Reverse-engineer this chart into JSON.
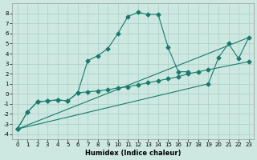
{
  "background_color": "#cce8e0",
  "grid_color": "#aacfc8",
  "line_color": "#1a7a6e",
  "xlim": [
    -0.5,
    23.5
  ],
  "ylim": [
    -4.5,
    9.0
  ],
  "xlabel": "Humidex (Indice chaleur)",
  "xticks": [
    0,
    1,
    2,
    3,
    4,
    5,
    6,
    7,
    8,
    9,
    10,
    11,
    12,
    13,
    14,
    15,
    16,
    17,
    18,
    19,
    20,
    21,
    22,
    23
  ],
  "yticks": [
    -4,
    -3,
    -2,
    -1,
    0,
    1,
    2,
    3,
    4,
    5,
    6,
    7,
    8
  ],
  "curve1_x": [
    0,
    1,
    2,
    3,
    4,
    5,
    6,
    7,
    8,
    9,
    10,
    11,
    12,
    13,
    14,
    15,
    16,
    17
  ],
  "curve1_y": [
    -3.5,
    -1.8,
    -0.8,
    -0.7,
    -0.6,
    -0.7,
    0.1,
    3.3,
    3.8,
    4.5,
    6.0,
    7.7,
    8.1,
    7.9,
    7.9,
    4.6,
    2.2,
    2.2
  ],
  "curve2_x": [
    0,
    1,
    2,
    3,
    4,
    5,
    6,
    7,
    8,
    9,
    10,
    11,
    12,
    13,
    14,
    15,
    16,
    17,
    18,
    19,
    23
  ],
  "curve2_y": [
    -3.5,
    -1.8,
    -0.8,
    -0.7,
    -0.6,
    -0.7,
    0.1,
    0.2,
    0.3,
    0.4,
    0.6,
    0.7,
    0.9,
    1.1,
    1.3,
    1.5,
    1.7,
    2.0,
    2.2,
    2.4,
    3.2
  ],
  "curve3_x": [
    0,
    19,
    20,
    21,
    22,
    23
  ],
  "curve3_y": [
    -3.5,
    1.0,
    3.6,
    5.0,
    3.5,
    5.6
  ],
  "curve4_x": [
    0,
    23
  ],
  "curve4_y": [
    -3.5,
    5.6
  ],
  "xlabel_fontsize": 6.0,
  "tick_fontsize": 5.0
}
